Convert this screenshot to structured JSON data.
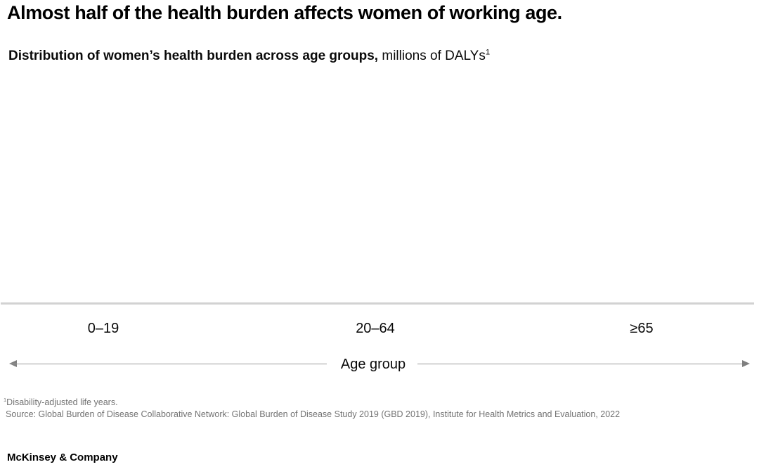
{
  "header": {
    "title": "Almost half of the health burden affects women of working age.",
    "subtitle_emphasis": "Distribution of women’s health burden across age groups,",
    "subtitle_unit": " millions of DALYs",
    "subtitle_footnote_ref": "1"
  },
  "chart_data": {
    "type": "bar",
    "title": "Distribution of women’s health burden across age groups",
    "unit": "millions of DALYs",
    "categories": [
      "0–19",
      "20–64",
      "≥65"
    ],
    "values": [
      null,
      null,
      null
    ],
    "xlabel": "Age group",
    "ylabel": "",
    "legend": [],
    "layout_hints": {
      "grid": false,
      "baseline_only": true,
      "notes": "Plot area above the x-axis baseline is empty in this frame; no bars or value labels are rendered."
    }
  },
  "footnotes": {
    "ref_mark": "1",
    "definition": "Disability-adjusted life years.",
    "source": "Source: Global Burden of Disease Collaborative Network: Global Burden of Disease Study 2019 (GBD 2019), Institute for Health Metrics and Evaluation, 2022"
  },
  "footer": {
    "brand": "McKinsey & Company"
  },
  "colors": {
    "text": "#000000",
    "footnote_text": "#737373",
    "baseline": "#d2d2d2",
    "axis_arrow_line": "#9a9a9a",
    "axis_arrowhead": "#7f7f7f"
  }
}
